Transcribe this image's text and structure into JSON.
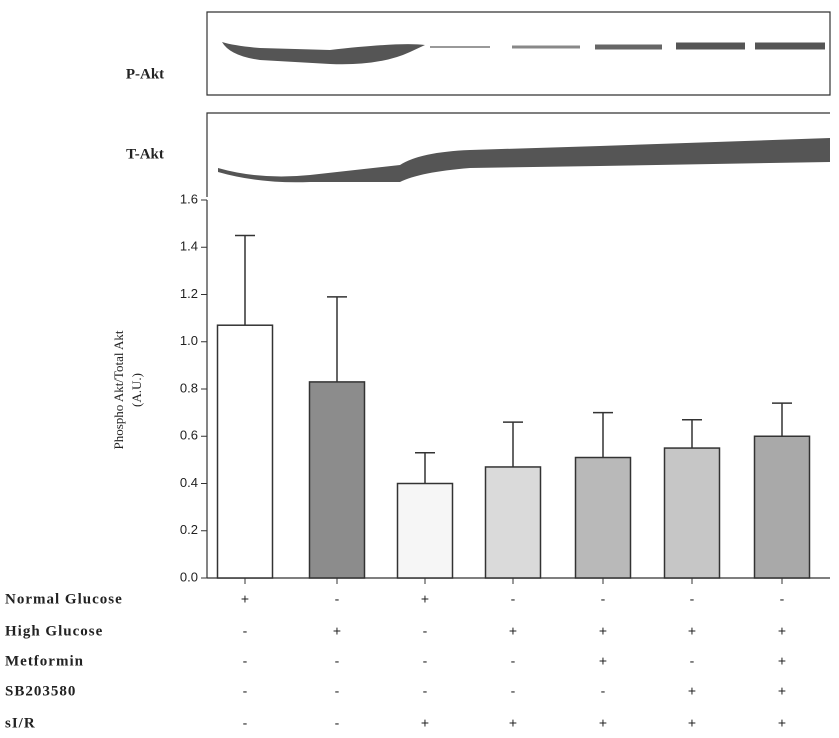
{
  "chart_data": {
    "type": "bar",
    "blot_labels": [
      "P-Akt",
      "T-Akt"
    ],
    "y_label": [
      "Phospho Akt/Total Akt",
      "(A.U.)"
    ],
    "values": [
      1.07,
      0.83,
      0.4,
      0.47,
      0.51,
      0.55,
      0.6
    ],
    "errors": [
      0.38,
      0.36,
      0.13,
      0.19,
      0.19,
      0.12,
      0.14
    ],
    "colors": [
      "#ffffff",
      "#8c8c8c",
      "#f6f6f6",
      "#dadada",
      "#b9b9b9",
      "#c6c6c6",
      "#a9a9a9"
    ],
    "ylim": [
      0,
      1.6
    ],
    "yticks": [
      {
        "value": 0,
        "label": "0.0"
      },
      0.2,
      0.4,
      0.6,
      0.8,
      {
        "value": 1,
        "label": "1.0"
      },
      1.2,
      1.4,
      1.6
    ],
    "treatments": [
      {
        "name": "Normal Glucose",
        "signs": [
          "+",
          "-",
          "+",
          "-",
          "-",
          "-",
          "-"
        ]
      },
      {
        "name": "High Glucose",
        "signs": [
          "-",
          "+",
          "-",
          "+",
          "+",
          "+",
          "+"
        ]
      },
      {
        "name": "Metformin",
        "signs": [
          "-",
          "-",
          "-",
          "-",
          "+",
          "-",
          "+"
        ]
      },
      {
        "name": "SB203580",
        "signs": [
          "-",
          "-",
          "-",
          "-",
          "-",
          "+",
          "+"
        ]
      },
      {
        "name": "sI/R",
        "signs": [
          "-",
          "-",
          "+",
          "+",
          "+",
          "+",
          "+"
        ]
      }
    ]
  }
}
